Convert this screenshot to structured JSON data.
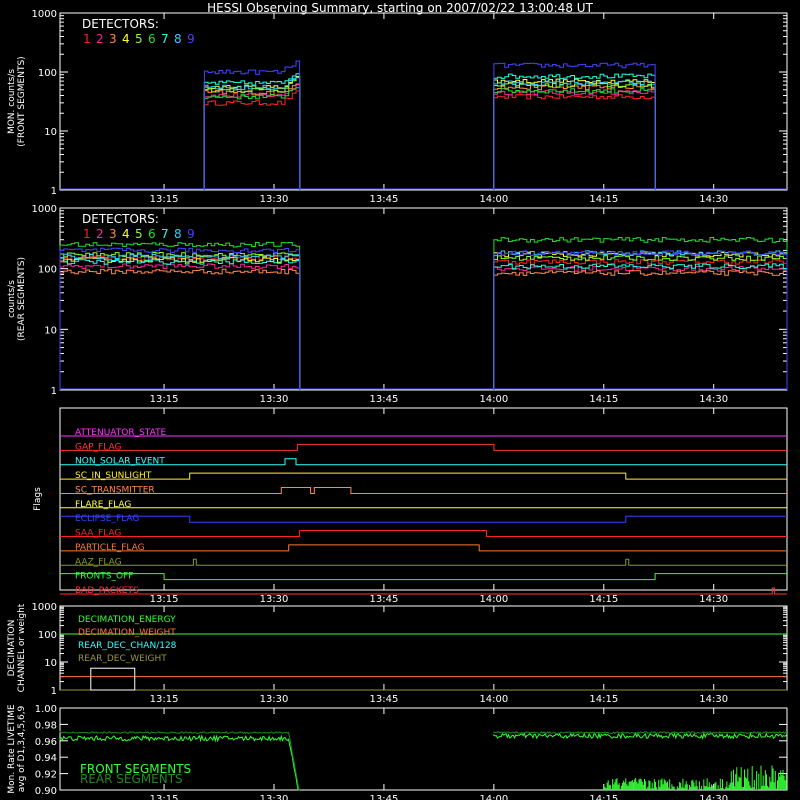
{
  "title": "HESSI Observing Summary, starting on 2007/02/22 13:00:48 UT",
  "x_axis": {
    "tick_labels": [
      "13:15",
      "13:30",
      "13:45",
      "14:00",
      "14:15",
      "14:30"
    ],
    "tick_minutes": [
      15,
      30,
      45,
      60,
      75,
      90
    ],
    "start_minute": 0.8,
    "end_minute": 100.0
  },
  "detectors": {
    "label": "DETECTORS:",
    "numbers": [
      "1",
      "2",
      "3",
      "4",
      "5",
      "6",
      "7",
      "8",
      "9"
    ],
    "colors": [
      "#ff2222",
      "#ff2299",
      "#ff8844",
      "#ffff33",
      "#88ff33",
      "#22dd33",
      "#22ffdd",
      "#33ccff",
      "#4444ff"
    ]
  },
  "chart_data": [
    {
      "type": "line",
      "name": "front_rates",
      "ylabel_lines": [
        "MON. counts/s",
        "(FRONT SEGMENTS)"
      ],
      "yscale": "log",
      "ylim": [
        1,
        1000
      ],
      "ytick_labels": [
        "1",
        "10",
        "100",
        "1000"
      ],
      "segments": [
        [
          20.5,
          33.5
        ],
        [
          60.0,
          82.0
        ]
      ],
      "levels": [
        [
          30,
          38
        ],
        [
          40,
          45
        ],
        [
          45,
          55
        ],
        [
          55,
          70
        ],
        [
          50,
          60
        ],
        [
          38,
          48
        ],
        [
          65,
          85
        ],
        [
          55,
          65
        ],
        [
          100,
          130
        ]
      ]
    },
    {
      "type": "line",
      "name": "rear_rates",
      "ylabel_lines": [
        "counts/s",
        "(REAR SEGMENTS)"
      ],
      "yscale": "log",
      "ylim": [
        1,
        1000
      ],
      "ytick_labels": [
        "1",
        "10",
        "100",
        "1000"
      ],
      "segments": [
        [
          0.8,
          33.5
        ],
        [
          60.0,
          100.0
        ]
      ],
      "levels": [
        [
          150,
          130
        ],
        [
          110,
          100
        ],
        [
          90,
          85
        ],
        [
          140,
          170
        ],
        [
          170,
          150
        ],
        [
          250,
          300
        ],
        [
          130,
          110
        ],
        [
          160,
          180
        ],
        [
          200,
          180
        ]
      ]
    },
    {
      "type": "line",
      "name": "flags",
      "ylabel_lines": [
        "Flags"
      ],
      "series": [
        {
          "name": "ATTENUATOR_STATE",
          "color": "#ff33ff",
          "transitions": [],
          "initial": 0
        },
        {
          "name": "GAP_FLAG",
          "color": "#ff3333",
          "transitions": [
            [
              33.2,
              1
            ],
            [
              60.0,
              0
            ]
          ],
          "initial": 0
        },
        {
          "name": "NON_SOLAR_EVENT",
          "color": "#33ffff",
          "transitions": [
            [
              31.5,
              1
            ],
            [
              33.0,
              0
            ]
          ],
          "initial": 0
        },
        {
          "name": "SC_IN_SUNLIGHT",
          "color": "#ffee33",
          "transitions": [
            [
              18.5,
              1
            ],
            [
              78.0,
              0
            ]
          ],
          "initial": 0
        },
        {
          "name": "SC_TRANSMITTER",
          "color": "#ff8844",
          "transitions": [
            [
              31.0,
              1
            ],
            [
              35.0,
              0
            ],
            [
              35.5,
              1
            ],
            [
              40.5,
              0
            ]
          ],
          "initial": 0
        },
        {
          "name": "FLARE_FLAG",
          "color": "#ffff44",
          "transitions": [],
          "initial": 0
        },
        {
          "name": "ECLIPSE_FLAG",
          "color": "#3344ff",
          "transitions": [
            [
              18.5,
              0
            ],
            [
              78.0,
              1
            ]
          ],
          "initial": 1
        },
        {
          "name": "SAA_FLAG",
          "color": "#ff2222",
          "transitions": [
            [
              33.5,
              1
            ],
            [
              59.0,
              0
            ]
          ],
          "initial": 0
        },
        {
          "name": "PARTICLE_FLAG",
          "color": "#ff7733",
          "transitions": [
            [
              32.0,
              1
            ],
            [
              58.0,
              0
            ]
          ],
          "initial": 0
        },
        {
          "name": "AAZ_FLAG",
          "color": "#889922",
          "transitions": [
            [
              19.0,
              1
            ],
            [
              19.4,
              0
            ],
            [
              78.0,
              1
            ],
            [
              78.4,
              0
            ]
          ],
          "initial": 0
        },
        {
          "name": "FRONTS_OFF",
          "color": "#33ff33",
          "transitions": [
            [
              15.0,
              0
            ],
            [
              82.0,
              1
            ]
          ],
          "initial": 1
        },
        {
          "name": "BAD_PACKETS",
          "color": "#ff3333",
          "transitions": [
            [
              98.0,
              1
            ],
            [
              98.3,
              0
            ]
          ],
          "initial": 0
        }
      ]
    },
    {
      "type": "line",
      "name": "decimation",
      "ylabel_lines": [
        "DECIMATION",
        "CHANNEL or weight"
      ],
      "yscale": "log",
      "ylim": [
        1,
        1000
      ],
      "ytick_labels": [
        "1",
        "10",
        "100",
        "1000"
      ],
      "series": [
        {
          "name": "DECIMATION_ENERGY",
          "color": "#33ff33",
          "level": 100
        },
        {
          "name": "DECIMATION_WEIGHT",
          "color": "#ff7733",
          "level": 3
        },
        {
          "name": "REAR_DEC_CHAN/128",
          "color": "#33ffff",
          "level": 1
        },
        {
          "name": "REAR_DEC_WEIGHT",
          "color": "#999933",
          "level": 1
        }
      ],
      "white_box": {
        "x": [
          5.0,
          11.0
        ],
        "y": [
          1,
          6
        ]
      }
    },
    {
      "type": "line",
      "name": "livetime",
      "ylabel_lines": [
        "Mon. Rate LIVETIME",
        "avg of D1,3,4,5,6,9"
      ],
      "ylim": [
        0.9,
        1.0
      ],
      "ytick_labels": [
        "0.90",
        "0.92",
        "0.94",
        "0.96",
        "0.98",
        "1.00"
      ],
      "series": [
        {
          "name": "FRONT SEGMENTS",
          "color": "#33ff33",
          "segments": [
            [
              0.8,
              33.5,
              0.963
            ],
            [
              60.0,
              100.0,
              0.966
            ]
          ]
        },
        {
          "name": "REAR SEGMENTS",
          "color": "#228822",
          "segments": [
            [
              0.8,
              33.5,
              0.97
            ],
            [
              60.0,
              100.0,
              0.97
            ]
          ]
        }
      ]
    }
  ]
}
